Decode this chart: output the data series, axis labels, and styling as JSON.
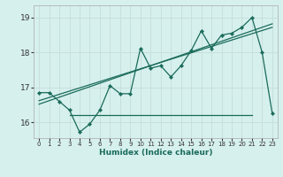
{
  "title": "",
  "xlabel": "Humidex (Indice chaleur)",
  "bg_color": "#d6f0ee",
  "grid_color": "#c8e0dc",
  "line_color": "#1a6b5a",
  "xlim": [
    -0.5,
    23.5
  ],
  "ylim": [
    15.55,
    19.35
  ],
  "yticks": [
    16,
    17,
    18,
    19
  ],
  "xticks": [
    0,
    1,
    2,
    3,
    4,
    5,
    6,
    7,
    8,
    9,
    10,
    11,
    12,
    13,
    14,
    15,
    16,
    17,
    18,
    19,
    20,
    21,
    22,
    23
  ],
  "line1_x": [
    0,
    1,
    2,
    3,
    4,
    5,
    6,
    7,
    8,
    9,
    10,
    11,
    12,
    13,
    14,
    15,
    16,
    17,
    18,
    19,
    20,
    21,
    22,
    23
  ],
  "line1_y": [
    16.85,
    16.85,
    16.6,
    16.35,
    15.72,
    15.95,
    16.35,
    17.05,
    16.82,
    16.82,
    18.12,
    17.55,
    17.62,
    17.3,
    17.62,
    18.05,
    18.62,
    18.12,
    18.5,
    18.55,
    18.72,
    19.0,
    18.0,
    16.25
  ],
  "trend_x": [
    0,
    23
  ],
  "trend_y": [
    16.52,
    18.82
  ],
  "trend2_x": [
    0,
    23
  ],
  "trend2_y": [
    16.62,
    18.72
  ],
  "hline_x": [
    3,
    21
  ],
  "hline_y": [
    16.2,
    16.2
  ]
}
